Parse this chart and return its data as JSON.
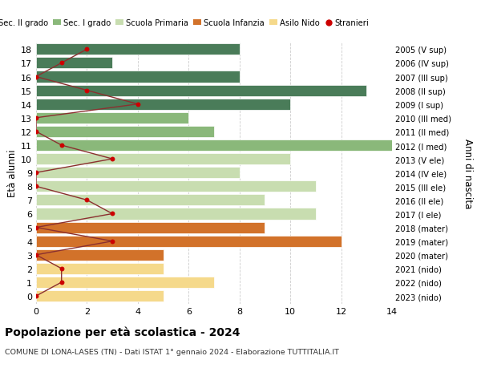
{
  "ages": [
    18,
    17,
    16,
    15,
    14,
    13,
    12,
    11,
    10,
    9,
    8,
    7,
    6,
    5,
    4,
    3,
    2,
    1,
    0
  ],
  "right_labels": [
    "2005 (V sup)",
    "2006 (IV sup)",
    "2007 (III sup)",
    "2008 (II sup)",
    "2009 (I sup)",
    "2010 (III med)",
    "2011 (II med)",
    "2012 (I med)",
    "2013 (V ele)",
    "2014 (IV ele)",
    "2015 (III ele)",
    "2016 (II ele)",
    "2017 (I ele)",
    "2018 (mater)",
    "2019 (mater)",
    "2020 (mater)",
    "2021 (nido)",
    "2022 (nido)",
    "2023 (nido)"
  ],
  "bar_values": [
    8,
    3,
    8,
    13,
    10,
    6,
    7,
    14,
    10,
    8,
    11,
    9,
    11,
    9,
    12,
    5,
    5,
    7,
    5
  ],
  "bar_colors": [
    "#4a7c59",
    "#4a7c59",
    "#4a7c59",
    "#4a7c59",
    "#4a7c59",
    "#8ab87a",
    "#8ab87a",
    "#8ab87a",
    "#c8ddb0",
    "#c8ddb0",
    "#c8ddb0",
    "#c8ddb0",
    "#c8ddb0",
    "#d2722a",
    "#d2722a",
    "#d2722a",
    "#f5d98b",
    "#f5d98b",
    "#f5d98b"
  ],
  "stranieri_values": [
    2,
    1,
    0,
    2,
    4,
    0,
    0,
    1,
    3,
    0,
    0,
    2,
    3,
    0,
    3,
    0,
    1,
    1,
    0
  ],
  "title": "Popolazione per età scolastica - 2024",
  "subtitle": "COMUNE DI LONA-LASES (TN) - Dati ISTAT 1° gennaio 2024 - Elaborazione TUTTITALIA.IT",
  "ylabel": "Età alunni",
  "right_ylabel": "Anni di nascita",
  "xlim": [
    0,
    14
  ],
  "xticks": [
    0,
    2,
    4,
    6,
    8,
    10,
    12,
    14
  ],
  "legend_labels": [
    "Sec. II grado",
    "Sec. I grado",
    "Scuola Primaria",
    "Scuola Infanzia",
    "Asilo Nido",
    "Stranieri"
  ],
  "legend_colors": [
    "#4a7c59",
    "#8ab87a",
    "#c8ddb0",
    "#d2722a",
    "#f5d98b",
    "#cc0000"
  ],
  "bar_height": 0.82,
  "background_color": "#ffffff",
  "grid_color": "#cccccc",
  "stranieri_color": "#cc0000",
  "stranieri_line_color": "#8b3030"
}
